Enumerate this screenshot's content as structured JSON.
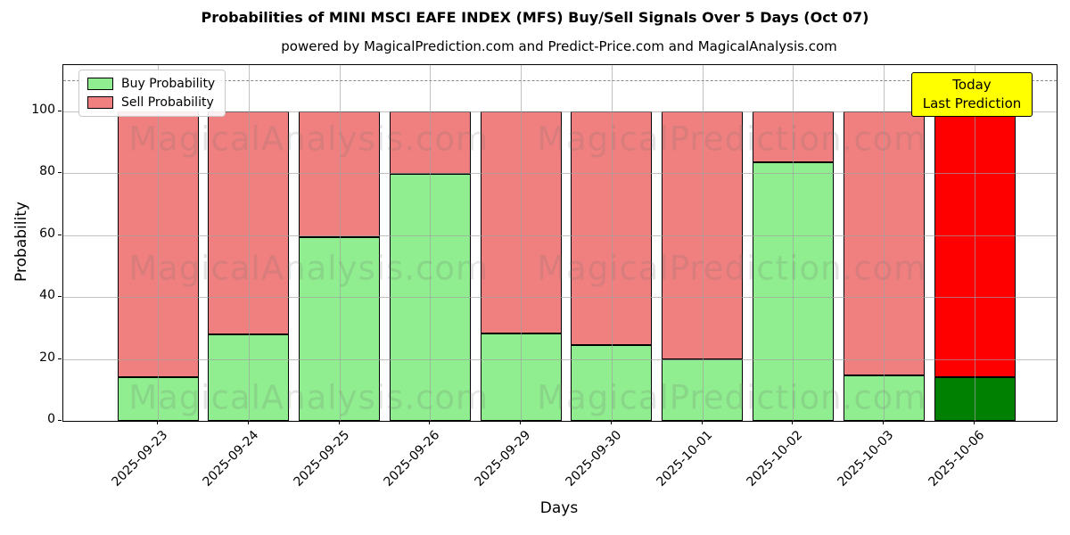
{
  "title": "Probabilities of MINI MSCI EAFE INDEX (MFS) Buy/Sell Signals Over 5 Days (Oct 07)",
  "subtitle": "powered by MagicalPrediction.com and Predict-Price.com and MagicalAnalysis.com",
  "legend": {
    "items": [
      {
        "label": "Buy Probability",
        "color": "#90ee90"
      },
      {
        "label": "Sell Probability",
        "color": "#f08080"
      }
    ]
  },
  "annotation": {
    "line1": "Today",
    "line2": "Last Prediction",
    "bg_color": "#ffff00"
  },
  "watermarks": {
    "left_text": "MagicalAnalysis.com",
    "right_text": "MagicalPrediction.com"
  },
  "axes": {
    "xlabel": "Days",
    "ylabel": "Probability",
    "yticks": [
      0,
      20,
      40,
      60,
      80,
      100
    ],
    "ylim": [
      0,
      115
    ],
    "dashed_line_y": 110,
    "grid": "on"
  },
  "chart_data": {
    "type": "bar",
    "stacked": true,
    "title": "Probabilities of MINI MSCI EAFE INDEX (MFS) Buy/Sell Signals Over 5 Days (Oct 07)",
    "xlabel": "Days",
    "ylabel": "Probability",
    "ylim": [
      0,
      115
    ],
    "categories": [
      "2025-09-23",
      "2025-09-24",
      "2025-09-25",
      "2025-09-26",
      "2025-09-29",
      "2025-09-30",
      "2025-10-01",
      "2025-10-02",
      "2025-10-03",
      "2025-10-06"
    ],
    "series": [
      {
        "name": "Buy Probability",
        "values": [
          14,
          28,
          59.5,
          79.7,
          28.2,
          24.5,
          19.9,
          83.6,
          14.6,
          14
        ]
      },
      {
        "name": "Sell Probability",
        "values": [
          86,
          72,
          40.5,
          20.3,
          71.8,
          75.5,
          80.1,
          16.4,
          85.4,
          86
        ]
      }
    ],
    "colors": {
      "buy_default": "#90ee90",
      "sell_default": "#f08080",
      "buy_last": "#008000",
      "sell_last": "#ff0000",
      "bar_edge": "#000000"
    },
    "legend_position": "upper left",
    "annotation_last_bar": "Today Last Prediction"
  }
}
